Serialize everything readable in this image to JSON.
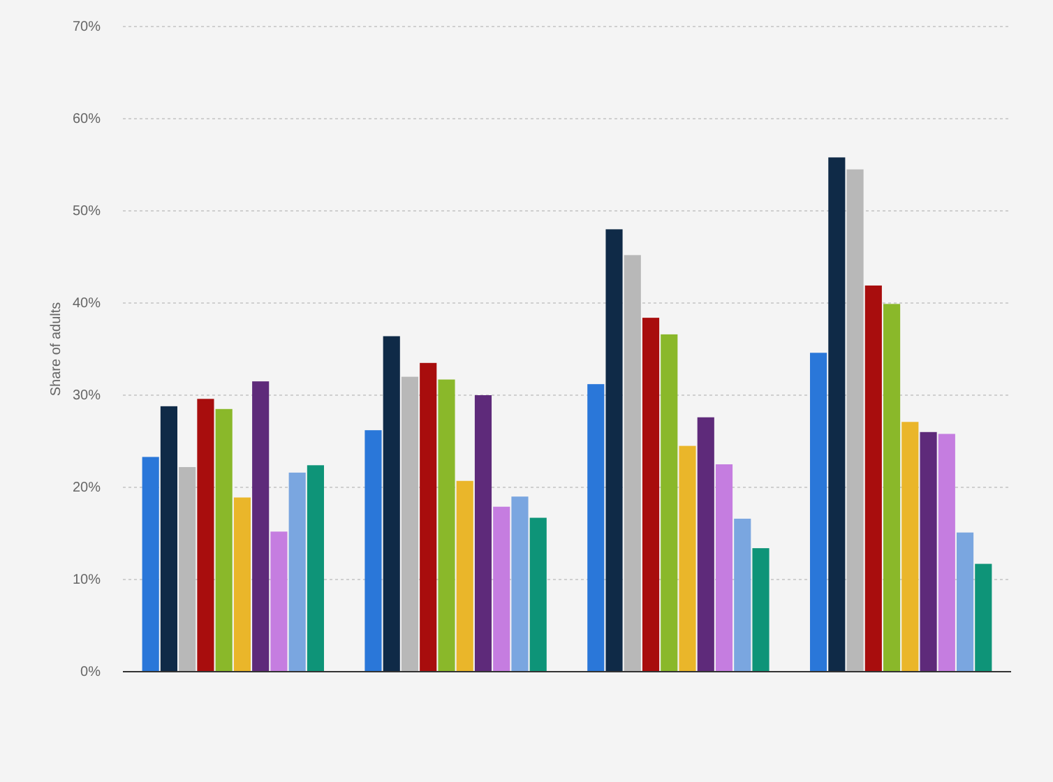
{
  "chart_data": {
    "type": "bar",
    "ylabel": "Share of adults",
    "categories": [
      null,
      null,
      null,
      null
    ],
    "series": [
      {
        "color": "#2a77d9",
        "values": [
          23.3,
          26.2,
          31.2,
          34.6
        ]
      },
      {
        "color": "#0f2a47",
        "values": [
          28.8,
          36.4,
          48,
          55.8
        ]
      },
      {
        "color": "#b8b8b8",
        "values": [
          22.2,
          32,
          45.2,
          54.5
        ]
      },
      {
        "color": "#a80d0d",
        "values": [
          29.6,
          33.5,
          38.4,
          41.9
        ]
      },
      {
        "color": "#8ab82a",
        "values": [
          28.5,
          31.7,
          36.6,
          39.9
        ]
      },
      {
        "color": "#eab62a",
        "values": [
          18.9,
          20.7,
          24.5,
          27.1
        ]
      },
      {
        "color": "#5e2a7a",
        "values": [
          31.5,
          30,
          27.6,
          26
        ]
      },
      {
        "color": "#c57de0",
        "values": [
          15.2,
          17.9,
          22.5,
          25.8
        ]
      },
      {
        "color": "#7aa6e0",
        "values": [
          21.6,
          19,
          16.6,
          15.1
        ]
      },
      {
        "color": "#0e9478",
        "values": [
          22.4,
          16.7,
          13.4,
          11.7
        ]
      }
    ],
    "ylim": [
      0,
      70
    ],
    "yticks": [
      {
        "value": 0,
        "label": "0%"
      },
      {
        "value": 10,
        "label": "10%"
      },
      {
        "value": 20,
        "label": "20%"
      },
      {
        "value": 30,
        "label": "30%"
      },
      {
        "value": 40,
        "label": "40%"
      },
      {
        "value": 50,
        "label": "50%"
      },
      {
        "value": 60,
        "label": "60%"
      },
      {
        "value": 70,
        "label": "70%"
      }
    ],
    "grid": "y"
  }
}
